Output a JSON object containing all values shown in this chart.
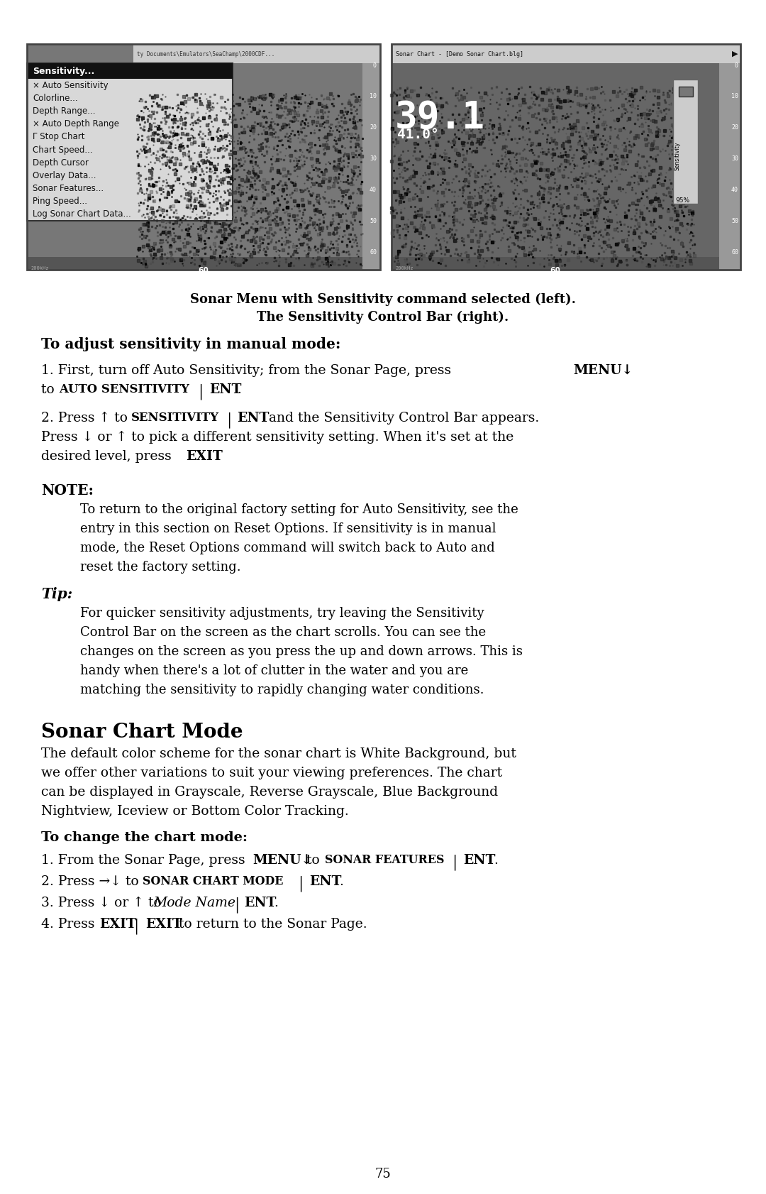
{
  "bg_color": "#ffffff",
  "page_number": "75",
  "image_caption_line1": "Sonar Menu with Sensitivity command selected (left).",
  "image_caption_line2": "The Sensitivity Control Bar (right).",
  "section1_heading": "To adjust sensitivity in manual mode:",
  "para1_text": [
    {
      "text": "1. First, turn off Auto Sensitivity; from the Sonar Page, press ",
      "style": "normal"
    },
    {
      "text": "MENU↓",
      "style": "bold"
    },
    {
      "text": " to ",
      "style": "normal"
    },
    {
      "text": "Auto Sensitivity",
      "style": "bold_smallcaps"
    },
    {
      "text": " | ",
      "style": "normal"
    },
    {
      "text": "ENT",
      "style": "bold"
    },
    {
      "text": ".",
      "style": "normal"
    }
  ],
  "para2_text": [
    {
      "text": "2. Press ↑ to ",
      "style": "normal"
    },
    {
      "text": "Sensitivity",
      "style": "bold_smallcaps"
    },
    {
      "text": " | ",
      "style": "normal"
    },
    {
      "text": "ENT",
      "style": "bold"
    },
    {
      "text": " and the Sensitivity Control Bar appears. Press ↓ or ↑ to pick a different sensitivity setting. When it's set at the desired level, press ",
      "style": "normal"
    },
    {
      "text": "EXIT",
      "style": "bold"
    },
    {
      "text": ".",
      "style": "normal"
    }
  ],
  "note_heading": "NOTE:",
  "note_body": "To return to the original factory setting for Auto Sensitivity, see the entry in this section on Reset Options. If sensitivity is in manual mode, the Reset Options command will switch back to Auto and reset the factory setting.",
  "tip_heading": "Tip:",
  "tip_body": "For quicker sensitivity adjustments, try leaving the Sensitivity Control Bar on the screen as the chart scrolls. You can see the changes on the screen as you press the up and down arrows. This is handy when there's a lot of clutter in the water and you are matching the sensitivity to rapidly changing water conditions.",
  "section2_heading": "Sonar Chart Mode",
  "section2_intro": "The default color scheme for the sonar chart is White Background, but we offer other variations to suit your viewing preferences. The chart can be displayed in Grayscale, Reverse Grayscale, Blue Background Nightview, Iceview or Bottom Color Tracking.",
  "section2_subheading": "To change the chart mode:",
  "step1_parts": [
    {
      "text": "1. From the Sonar Page, press ",
      "style": "normal"
    },
    {
      "text": "MENU↓",
      "style": "bold"
    },
    {
      "text": " to ",
      "style": "normal"
    },
    {
      "text": "Sonar Features",
      "style": "bold_smallcaps"
    },
    {
      "text": " | ",
      "style": "normal"
    },
    {
      "text": "ENT",
      "style": "bold"
    },
    {
      "text": ".",
      "style": "normal"
    }
  ],
  "step2_parts": [
    {
      "text": "2. Press →↓ to ",
      "style": "normal"
    },
    {
      "text": "Sonar Chart Mode",
      "style": "bold_smallcaps"
    },
    {
      "text": " | ",
      "style": "normal"
    },
    {
      "text": "ENT",
      "style": "bold"
    },
    {
      "text": ".",
      "style": "normal"
    }
  ],
  "step3_parts": [
    {
      "text": "3. Press ↓ or ↑ to ",
      "style": "normal"
    },
    {
      "text": "Mode Name",
      "style": "italic"
    },
    {
      "text": " | ",
      "style": "normal"
    },
    {
      "text": "ENT",
      "style": "bold"
    },
    {
      "text": ".",
      "style": "normal"
    }
  ],
  "step4_parts": [
    {
      "text": "4. Press ",
      "style": "normal"
    },
    {
      "text": "EXIT",
      "style": "bold"
    },
    {
      "text": " | ",
      "style": "normal"
    },
    {
      "text": "EXIT",
      "style": "bold"
    },
    {
      "text": " to return to the Sonar Page.",
      "style": "normal"
    }
  ],
  "left_menu_items": [
    "Sensitivity...",
    "× Auto Sensitivity",
    "Colorline...",
    "Depth Range...",
    "× Auto Depth Range",
    "Γ Stop Chart",
    "Chart Speed...",
    "Depth Cursor",
    "Overlay Data...",
    "Sonar Features...",
    "Ping Speed...",
    "Log Sonar Chart Data..."
  ],
  "left_title": "Sensitivity...",
  "right_title": "Sonar Chart - [Demo Sonar Chart.blg]"
}
